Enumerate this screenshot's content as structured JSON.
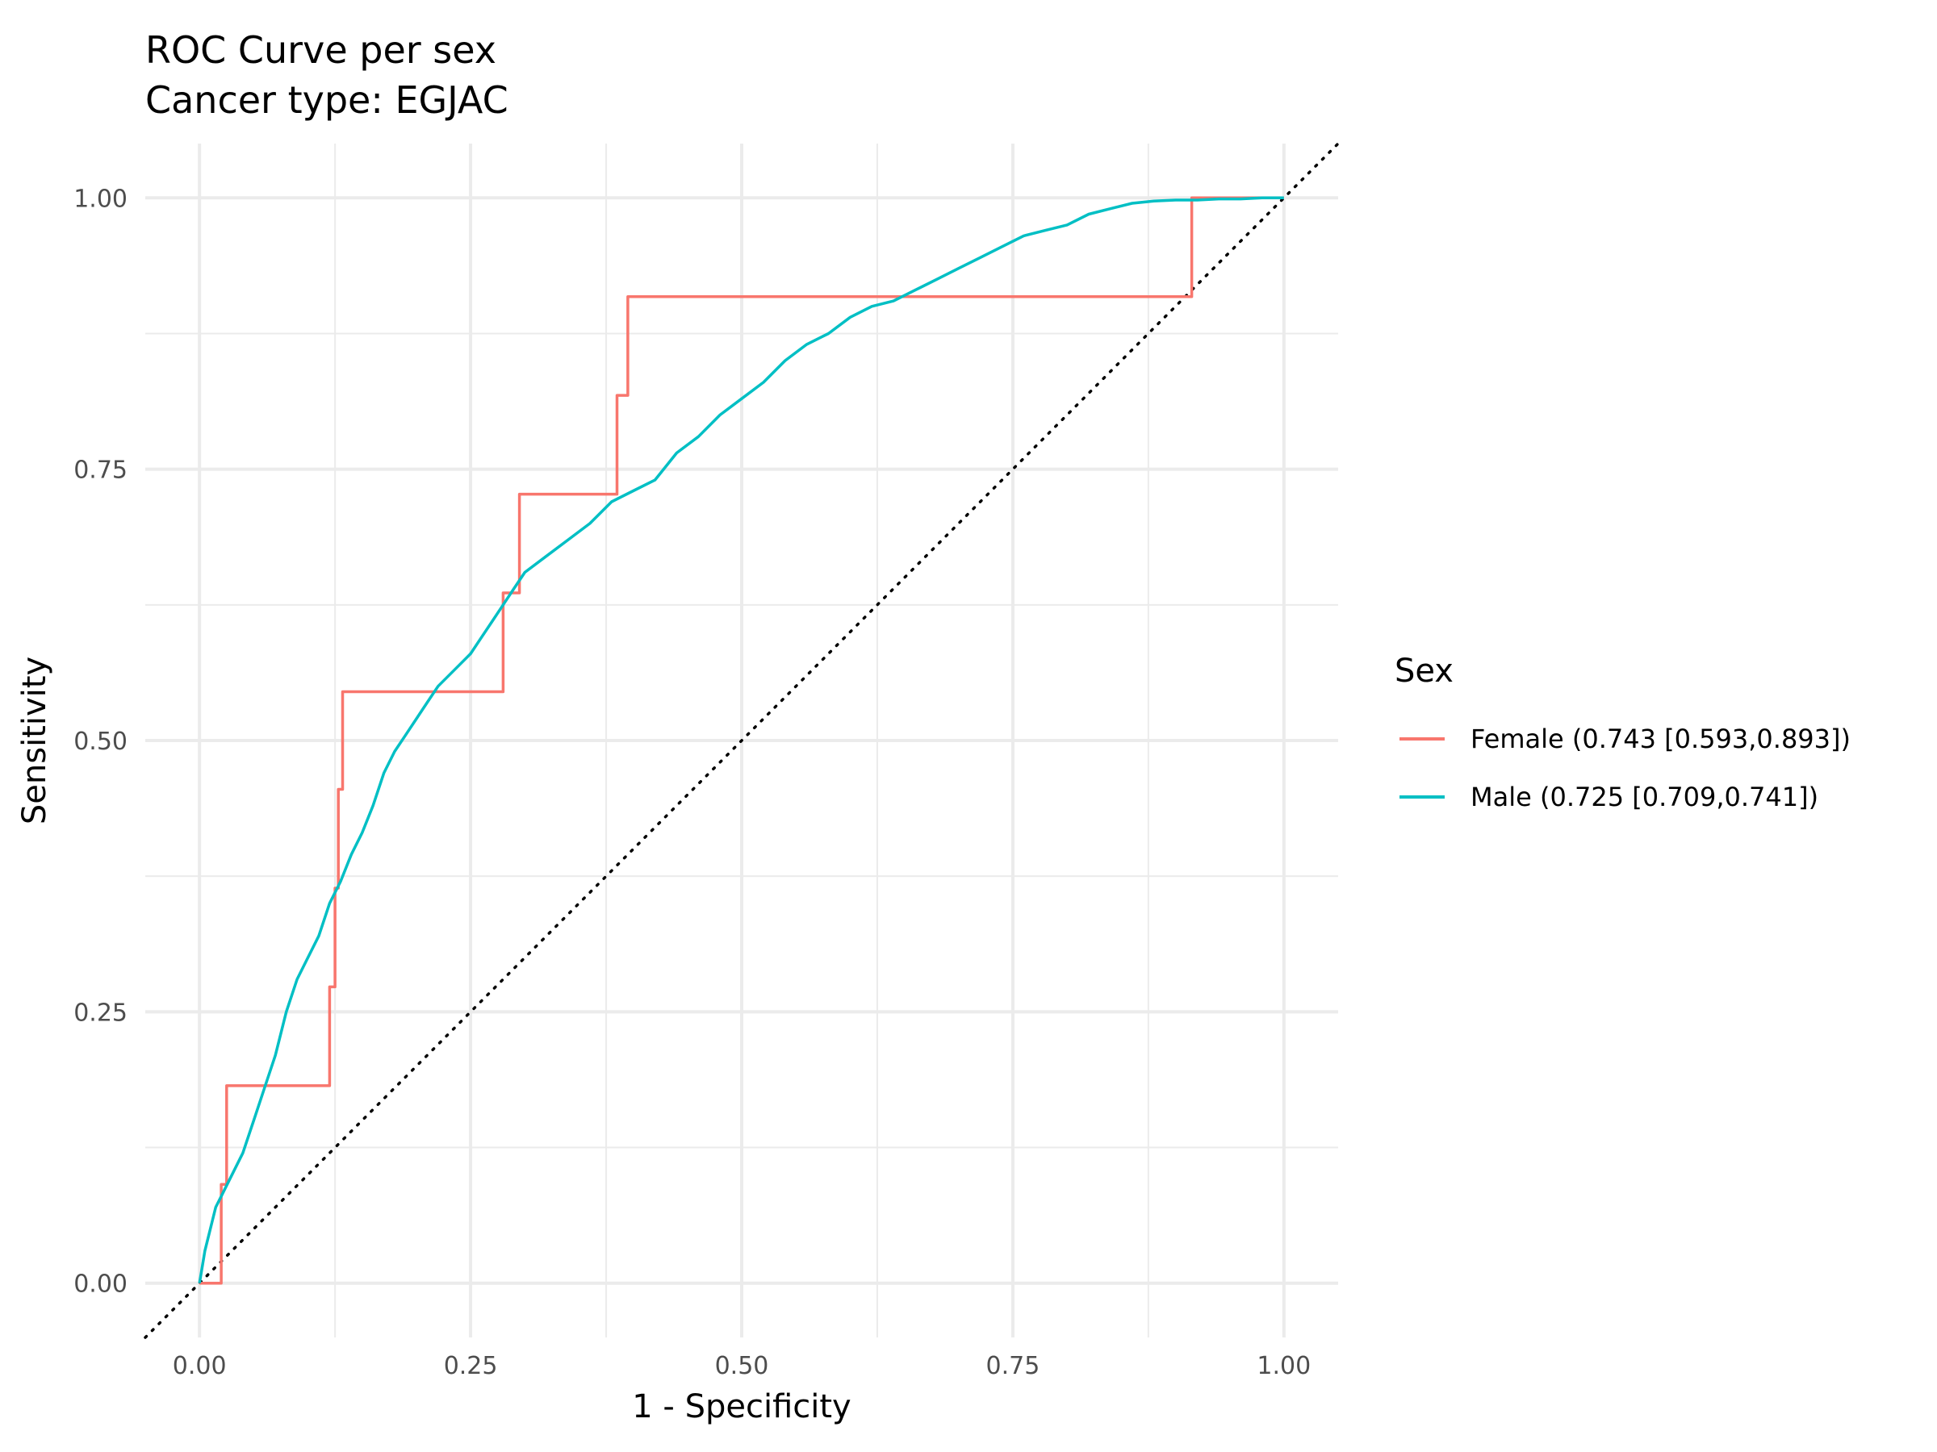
{
  "chart_data": {
    "type": "line",
    "title": "ROC Curve per sex",
    "subtitle": "Cancer type: EGJAC",
    "xlabel": "1 - Specificity",
    "ylabel": "Sensitivity",
    "xlim": [
      -0.05,
      1.05
    ],
    "ylim": [
      -0.05,
      1.05
    ],
    "x_ticks": [
      "0.00",
      "0.25",
      "0.50",
      "0.75",
      "1.00"
    ],
    "y_ticks": [
      "0.00",
      "0.25",
      "0.50",
      "0.75",
      "1.00"
    ],
    "grid": true,
    "legend_title": "Sex",
    "legend_position": "right",
    "reference_line": {
      "style": "dotted",
      "color": "#000000",
      "x": [
        -0.05,
        1.05
      ],
      "y": [
        -0.05,
        1.05
      ]
    },
    "series": [
      {
        "name": "Female (0.743 [0.593,0.893])",
        "color": "#F8766D",
        "step": true,
        "x": [
          0.0,
          0.02,
          0.02,
          0.025,
          0.025,
          0.12,
          0.12,
          0.125,
          0.125,
          0.128,
          0.128,
          0.132,
          0.132,
          0.28,
          0.28,
          0.295,
          0.295,
          0.385,
          0.385,
          0.395,
          0.395,
          0.91,
          0.91,
          0.915,
          0.915,
          1.0
        ],
        "y": [
          0.0,
          0.0,
          0.091,
          0.091,
          0.182,
          0.182,
          0.273,
          0.273,
          0.364,
          0.364,
          0.455,
          0.455,
          0.545,
          0.545,
          0.636,
          0.636,
          0.727,
          0.727,
          0.818,
          0.818,
          0.909,
          0.909,
          0.909,
          0.909,
          1.0,
          1.0
        ]
      },
      {
        "name": "Male (0.725 [0.709,0.741])",
        "color": "#00BFC4",
        "step": false,
        "x": [
          0.0,
          0.005,
          0.01,
          0.015,
          0.02,
          0.03,
          0.04,
          0.05,
          0.06,
          0.07,
          0.08,
          0.09,
          0.1,
          0.11,
          0.12,
          0.13,
          0.14,
          0.15,
          0.16,
          0.17,
          0.18,
          0.19,
          0.2,
          0.21,
          0.22,
          0.23,
          0.24,
          0.25,
          0.26,
          0.27,
          0.28,
          0.29,
          0.3,
          0.32,
          0.34,
          0.36,
          0.38,
          0.4,
          0.42,
          0.44,
          0.46,
          0.48,
          0.5,
          0.52,
          0.54,
          0.56,
          0.58,
          0.6,
          0.62,
          0.64,
          0.66,
          0.68,
          0.7,
          0.72,
          0.74,
          0.76,
          0.78,
          0.8,
          0.82,
          0.84,
          0.86,
          0.88,
          0.9,
          0.92,
          0.94,
          0.96,
          0.98,
          1.0
        ],
        "y": [
          0.0,
          0.03,
          0.05,
          0.07,
          0.08,
          0.1,
          0.12,
          0.15,
          0.18,
          0.21,
          0.25,
          0.28,
          0.3,
          0.32,
          0.35,
          0.37,
          0.395,
          0.415,
          0.44,
          0.47,
          0.49,
          0.505,
          0.52,
          0.535,
          0.55,
          0.56,
          0.57,
          0.58,
          0.595,
          0.61,
          0.625,
          0.64,
          0.655,
          0.67,
          0.685,
          0.7,
          0.72,
          0.73,
          0.74,
          0.765,
          0.78,
          0.8,
          0.815,
          0.83,
          0.85,
          0.865,
          0.875,
          0.89,
          0.9,
          0.905,
          0.915,
          0.925,
          0.935,
          0.945,
          0.955,
          0.965,
          0.97,
          0.975,
          0.985,
          0.99,
          0.995,
          0.997,
          0.998,
          0.998,
          0.999,
          0.999,
          1.0,
          1.0
        ]
      }
    ]
  }
}
